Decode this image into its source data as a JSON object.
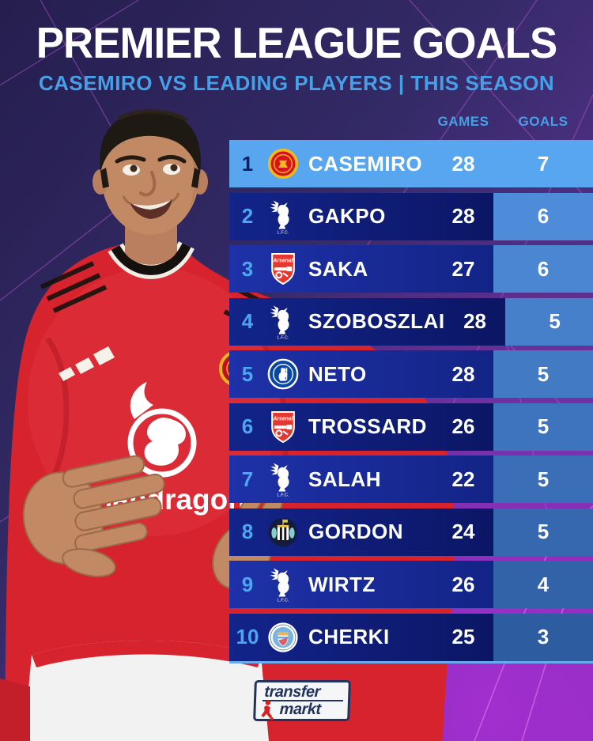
{
  "header": {
    "title": "PREMIER LEAGUE GOALS",
    "subtitle": "CASEMIRO VS LEADING PLAYERS | THIS SEASON"
  },
  "chart_data": {
    "type": "table",
    "title": "PREMIER LEAGUE GOALS",
    "subtitle": "CASEMIRO VS LEADING PLAYERS | THIS SEASON",
    "columns": [
      "GAMES",
      "GOALS"
    ],
    "rows": [
      {
        "rank": "1",
        "club": "manchester-united",
        "player": "CASEMIRO",
        "games": "28",
        "goals": "7",
        "highlight": true
      },
      {
        "rank": "2",
        "club": "liverpool",
        "player": "GAKPO",
        "games": "28",
        "goals": "6"
      },
      {
        "rank": "3",
        "club": "arsenal",
        "player": "SAKA",
        "games": "27",
        "goals": "6"
      },
      {
        "rank": "4",
        "club": "liverpool",
        "player": "SZOBOSZLAI",
        "games": "28",
        "goals": "5"
      },
      {
        "rank": "5",
        "club": "chelsea",
        "player": "NETO",
        "games": "28",
        "goals": "5"
      },
      {
        "rank": "6",
        "club": "arsenal",
        "player": "TROSSARD",
        "games": "26",
        "goals": "5"
      },
      {
        "rank": "7",
        "club": "liverpool",
        "player": "SALAH",
        "games": "22",
        "goals": "5"
      },
      {
        "rank": "8",
        "club": "newcastle",
        "player": "GORDON",
        "games": "24",
        "goals": "5"
      },
      {
        "rank": "9",
        "club": "liverpool",
        "player": "WIRTZ",
        "games": "26",
        "goals": "4"
      },
      {
        "rank": "10",
        "club": "manchester-city",
        "player": "CHERKI",
        "games": "25",
        "goals": "3"
      }
    ]
  },
  "clubs": {
    "liverpool": {
      "caption": "L.F.C."
    }
  },
  "shirt": {
    "sponsor": "snapdragon"
  },
  "brand": {
    "line1": "transfer",
    "line2": "markt"
  },
  "colors": {
    "accent_blue": "#46A0E8",
    "highlight_row": "#58A6EF",
    "row_dark": "#0B1765",
    "row_light": "#16289B",
    "goals_cell_top": "#4E8CD9",
    "goals_cell_bottom": "#2E5CA1",
    "background_purple": "#8D2CB5",
    "background_indigo": "#251E4E",
    "shirt_red": "#D6232E",
    "title_white": "#FFFFFF"
  }
}
